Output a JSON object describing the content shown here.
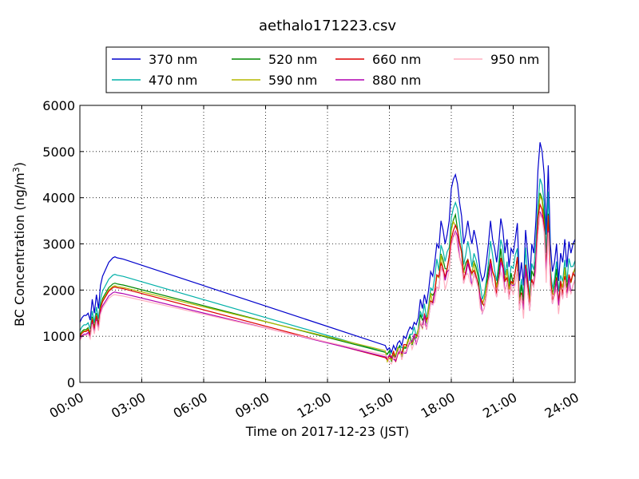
{
  "chart_data": {
    "type": "line",
    "title": "aethalo171223.csv",
    "xlabel": "Time on 2017-12-23 (JST)",
    "ylabel_main": "BC Concentration (ng/m",
    "ylabel_sup": "3",
    "ylabel_end": ")",
    "xlim": [
      0,
      24
    ],
    "ylim": [
      0,
      6000
    ],
    "x_ticks": [
      0,
      3,
      6,
      9,
      12,
      15,
      18,
      21,
      24
    ],
    "x_tick_labels": [
      "00:00",
      "03:00",
      "06:00",
      "09:00",
      "12:00",
      "15:00",
      "18:00",
      "21:00",
      "24:00"
    ],
    "y_ticks": [
      0,
      1000,
      2000,
      3000,
      4000,
      5000,
      6000
    ],
    "y_tick_labels": [
      "0",
      "1000",
      "2000",
      "3000",
      "4000",
      "5000",
      "6000"
    ],
    "grid": true,
    "legend_placement": "above-plot",
    "base_series": {
      "x": [
        0.0,
        0.1,
        0.2,
        0.3,
        0.4,
        0.5,
        0.6,
        0.7,
        0.8,
        0.9,
        1.0,
        1.1,
        1.2,
        1.3,
        1.4,
        1.5,
        1.6,
        1.7,
        1.8,
        1.9,
        2.0,
        2.1,
        14.8,
        14.9,
        15.0,
        15.1,
        15.2,
        15.3,
        15.4,
        15.5,
        15.6,
        15.7,
        15.8,
        15.9,
        16.0,
        16.1,
        16.2,
        16.3,
        16.4,
        16.5,
        16.6,
        16.7,
        16.8,
        16.9,
        17.0,
        17.1,
        17.2,
        17.3,
        17.4,
        17.5,
        17.6,
        17.7,
        17.8,
        17.9,
        18.0,
        18.1,
        18.2,
        18.3,
        18.4,
        18.5,
        18.6,
        18.7,
        18.8,
        18.9,
        19.0,
        19.1,
        19.2,
        19.3,
        19.4,
        19.5,
        19.6,
        19.7,
        19.8,
        19.9,
        20.0,
        20.1,
        20.2,
        20.3,
        20.4,
        20.5,
        20.6,
        20.7,
        20.8,
        20.9,
        21.0,
        21.1,
        21.2,
        21.3,
        21.4,
        21.5,
        21.6,
        21.7,
        21.8,
        21.9,
        22.0,
        22.1,
        22.2,
        22.3,
        22.4,
        22.5,
        22.6,
        22.7,
        22.8,
        22.9,
        23.0,
        23.1,
        23.2,
        23.3,
        23.4,
        23.5,
        23.6,
        23.7,
        23.8,
        23.9,
        24.0
      ],
      "y": [
        1300,
        1400,
        1450,
        1450,
        1500,
        1350,
        1800,
        1500,
        1900,
        1600,
        2100,
        2300,
        2400,
        2500,
        2600,
        2650,
        2700,
        2720,
        2700,
        2690,
        2680,
        2670,
        800,
        700,
        750,
        650,
        800,
        700,
        850,
        900,
        800,
        1000,
        950,
        1100,
        1200,
        1150,
        1300,
        1250,
        1400,
        1800,
        1600,
        1900,
        1700,
        2000,
        2400,
        2300,
        2600,
        3000,
        2900,
        3500,
        3300,
        3000,
        3200,
        3500,
        4200,
        4400,
        4500,
        4300,
        3900,
        3600,
        3000,
        3200,
        3500,
        3200,
        3000,
        3300,
        3100,
        2800,
        2400,
        2200,
        2300,
        2600,
        3000,
        3500,
        3100,
        2900,
        2600,
        3000,
        3550,
        3300,
        2800,
        3100,
        2500,
        2900,
        2800,
        3100,
        3450,
        2200,
        2600,
        2100,
        3300,
        2800,
        2200,
        3000,
        2800,
        3500,
        4600,
        5200,
        5000,
        4500,
        3200,
        4700,
        3000,
        2400,
        2600,
        3000,
        2200,
        2800,
        2600,
        3100,
        2500,
        3050,
        2800,
        3000,
        3100
      ]
    },
    "series": [
      {
        "name": "370 nm",
        "color": "#0000cc",
        "scale": 1.0
      },
      {
        "name": "470 nm",
        "color": "#00b0a8",
        "scale": 0.86
      },
      {
        "name": "520 nm",
        "color": "#008800",
        "scale": 0.79
      },
      {
        "name": "590 nm",
        "color": "#b5b800",
        "scale": 0.77
      },
      {
        "name": "660 nm",
        "color": "#dd0000",
        "scale": 0.76
      },
      {
        "name": "880 nm",
        "color": "#b000b0",
        "scale": 0.72
      },
      {
        "name": "950 nm",
        "color": "#ffb0c0",
        "scale": 0.7
      }
    ]
  }
}
